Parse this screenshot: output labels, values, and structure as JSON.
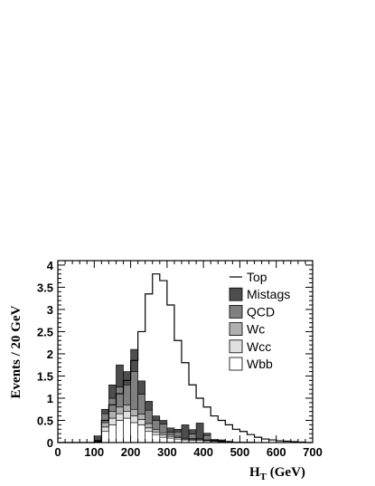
{
  "chart_data": {
    "type": "area",
    "xlabel": "H",
    "xlabel_sub": "T",
    "xlabel_unit": " (GeV)",
    "ylabel": "Events / 20 GeV",
    "xlim": [
      0,
      700
    ],
    "ylim": [
      0,
      4.1
    ],
    "x_ticks": [
      0,
      100,
      200,
      300,
      400,
      500,
      600,
      700
    ],
    "y_ticks": [
      0,
      0.5,
      1,
      1.5,
      2,
      2.5,
      3,
      3.5,
      4
    ],
    "y_tick_labels": [
      "0",
      "0.5",
      "1",
      "1.5",
      "2",
      "2.5",
      "3",
      "3.5",
      "4"
    ],
    "legend_position": "right",
    "bin_edges": [
      0,
      20,
      40,
      60,
      80,
      100,
      120,
      140,
      160,
      180,
      200,
      220,
      240,
      260,
      280,
      300,
      320,
      340,
      360,
      380,
      400,
      420,
      440,
      460,
      480,
      500,
      520,
      540,
      560,
      580,
      600,
      620,
      640,
      660,
      680,
      700
    ],
    "stack_series": [
      {
        "name": "Wbb",
        "color": "#ffffff",
        "values": [
          0,
          0,
          0,
          0,
          0,
          0.03,
          0.25,
          0.4,
          0.5,
          0.55,
          0.45,
          0.4,
          0.25,
          0.18,
          0.12,
          0.1,
          0.08,
          0.06,
          0.05,
          0.05,
          0.04,
          0.03,
          0.02,
          0.02,
          0.01,
          0.01,
          0.01,
          0,
          0,
          0,
          0,
          0,
          0,
          0,
          0
        ]
      },
      {
        "name": "Wcc",
        "color": "#e0e0e0",
        "values": [
          0,
          0,
          0,
          0,
          0,
          0.01,
          0.1,
          0.15,
          0.15,
          0.15,
          0.15,
          0.12,
          0.08,
          0.06,
          0.05,
          0.04,
          0.03,
          0.02,
          0.02,
          0.02,
          0.01,
          0.01,
          0.01,
          0,
          0,
          0,
          0,
          0,
          0,
          0,
          0,
          0,
          0,
          0,
          0
        ]
      },
      {
        "name": "Wc",
        "color": "#b0b0b0",
        "values": [
          0,
          0,
          0,
          0,
          0,
          0.01,
          0.1,
          0.15,
          0.15,
          0.15,
          0.15,
          0.12,
          0.1,
          0.06,
          0.05,
          0.04,
          0.03,
          0.02,
          0.02,
          0.02,
          0.01,
          0.01,
          0.01,
          0,
          0,
          0,
          0,
          0,
          0,
          0,
          0,
          0,
          0,
          0,
          0
        ]
      },
      {
        "name": "QCD",
        "color": "#808080",
        "values": [
          0,
          0,
          0,
          0,
          0,
          0,
          0.2,
          0.3,
          0.45,
          0.45,
          0.85,
          0.45,
          0.3,
          0.2,
          0.2,
          0.05,
          0.1,
          0,
          0.1,
          0,
          0.1,
          0,
          0,
          0,
          0,
          0,
          0,
          0,
          0,
          0,
          0,
          0,
          0,
          0,
          0
        ]
      },
      {
        "name": "Mistags",
        "color": "#4d4d4d",
        "values": [
          0,
          0,
          0,
          0,
          0,
          0.1,
          0.1,
          0.3,
          0.5,
          0.3,
          0.5,
          0.3,
          0.2,
          0.1,
          0.08,
          0.1,
          0.06,
          0.3,
          0.1,
          0.35,
          0.05,
          0.02,
          0.02,
          0.01,
          0,
          0,
          0,
          0,
          0,
          0,
          0,
          0,
          0,
          0,
          0
        ]
      }
    ],
    "line_series": {
      "name": "Top",
      "values": [
        0,
        0,
        0,
        0,
        0,
        0.02,
        0.5,
        0.85,
        1.1,
        1.4,
        1.85,
        2.5,
        3.35,
        3.8,
        3.65,
        3.1,
        2.3,
        1.8,
        1.3,
        1,
        0.8,
        0.6,
        0.5,
        0.4,
        0.3,
        0.25,
        0.18,
        0.12,
        0.08,
        0.06,
        0.04,
        0.03,
        0.02,
        0.01,
        0
      ]
    },
    "legend_order": [
      "Top",
      "Mistags",
      "QCD",
      "Wc",
      "Wcc",
      "Wbb"
    ]
  }
}
